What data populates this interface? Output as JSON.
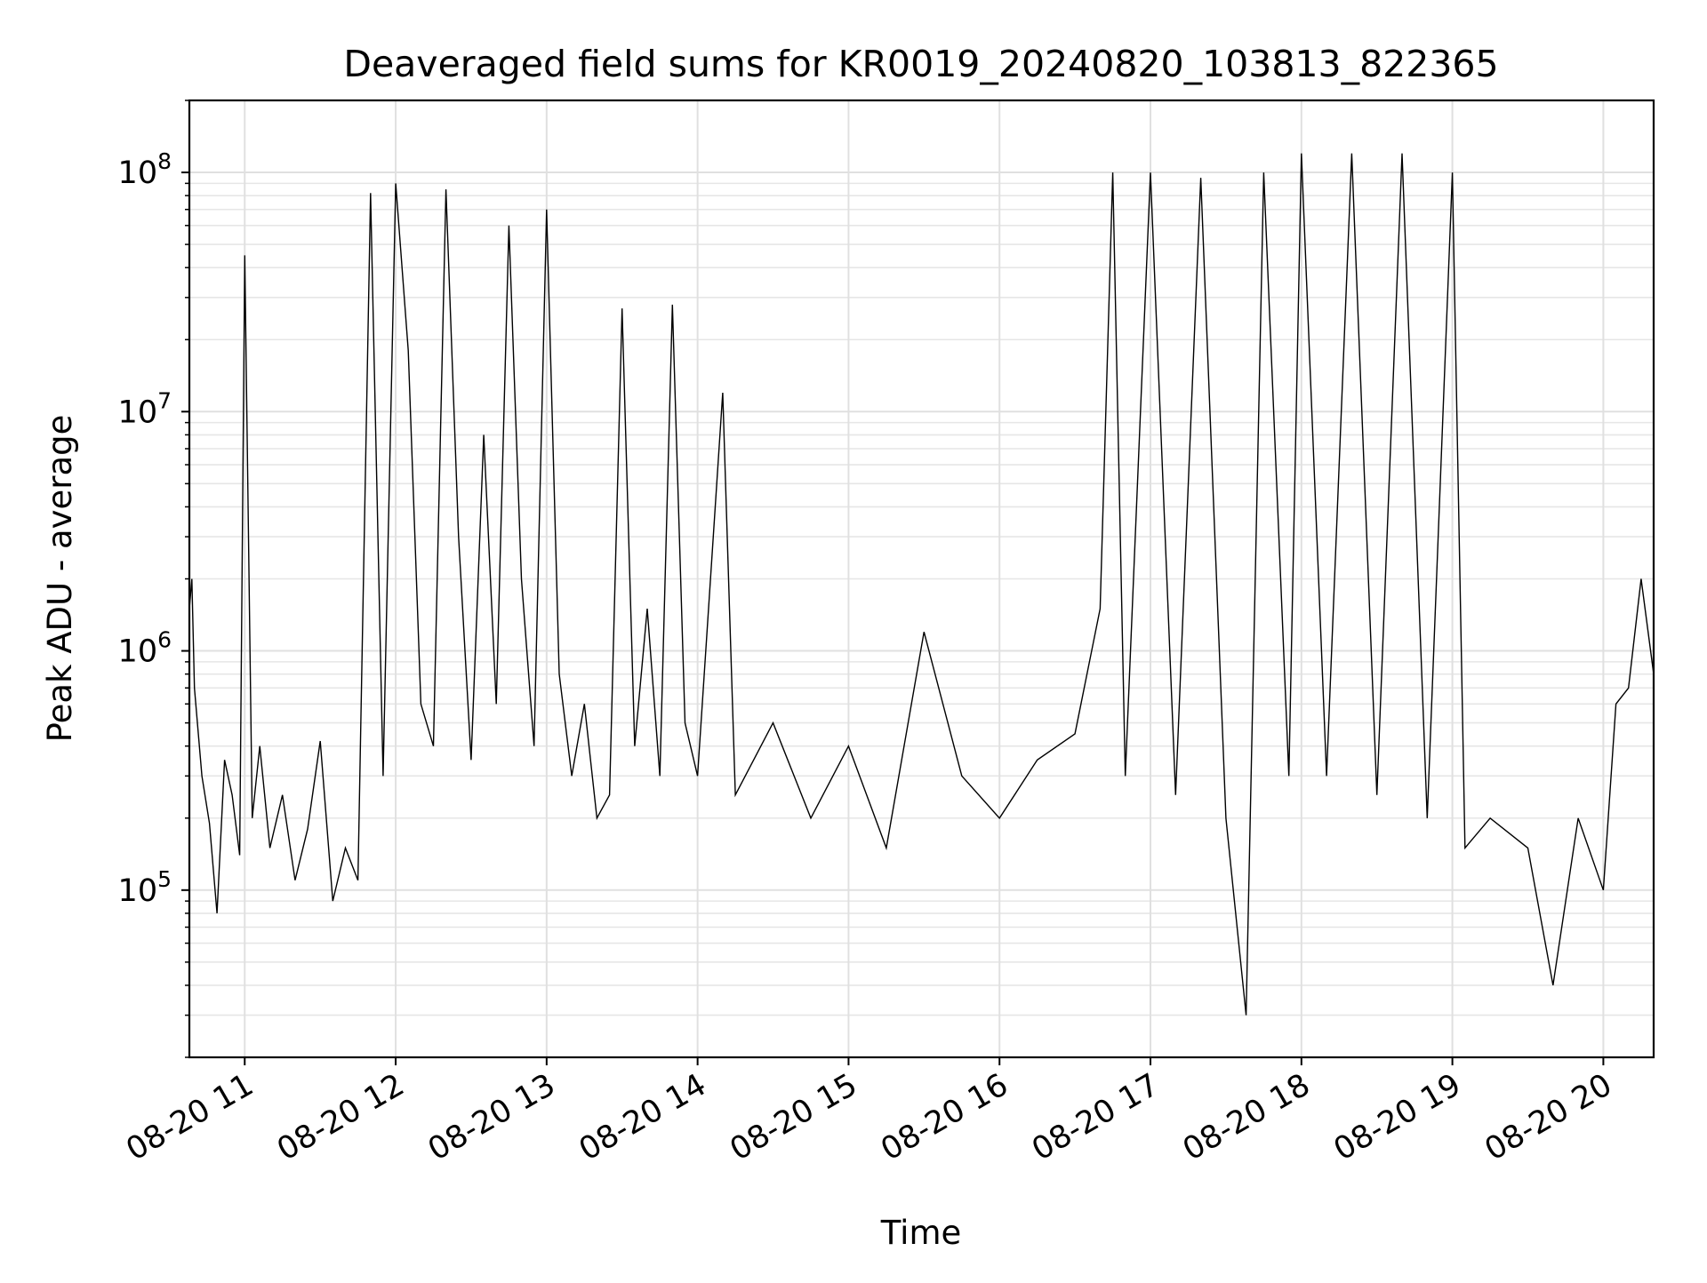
{
  "chart_data": {
    "type": "line",
    "title": "Deaveraged field sums for KR0019_20240820_103813_822365",
    "xlabel": "Time",
    "ylabel": "Peak ADU - average",
    "y_scale": "log",
    "ylim": [
      20000,
      200000000
    ],
    "xlim": [
      "2024-08-20T10:38",
      "2024-08-20T20:20"
    ],
    "grid": true,
    "legend": "none",
    "x_ticks": [
      {
        "t": "2024-08-20T11:00",
        "label": "08-20 11"
      },
      {
        "t": "2024-08-20T12:00",
        "label": "08-20 12"
      },
      {
        "t": "2024-08-20T13:00",
        "label": "08-20 13"
      },
      {
        "t": "2024-08-20T14:00",
        "label": "08-20 14"
      },
      {
        "t": "2024-08-20T15:00",
        "label": "08-20 15"
      },
      {
        "t": "2024-08-20T16:00",
        "label": "08-20 16"
      },
      {
        "t": "2024-08-20T17:00",
        "label": "08-20 17"
      },
      {
        "t": "2024-08-20T18:00",
        "label": "08-20 18"
      },
      {
        "t": "2024-08-20T19:00",
        "label": "08-20 19"
      },
      {
        "t": "2024-08-20T20:00",
        "label": "08-20 20"
      }
    ],
    "y_ticks": [
      {
        "value": 100000,
        "base": "10",
        "exp": "5"
      },
      {
        "value": 1000000,
        "base": "10",
        "exp": "6"
      },
      {
        "value": 10000000,
        "base": "10",
        "exp": "7"
      },
      {
        "value": 100000000,
        "base": "10",
        "exp": "8"
      }
    ],
    "series": [
      {
        "line_color": "#000000",
        "points": [
          [
            "2024-08-20T10:38",
            1500000
          ],
          [
            "2024-08-20T10:39",
            2000000
          ],
          [
            "2024-08-20T10:40",
            700000
          ],
          [
            "2024-08-20T10:43",
            300000
          ],
          [
            "2024-08-20T10:46",
            190000
          ],
          [
            "2024-08-20T10:49",
            80000
          ],
          [
            "2024-08-20T10:52",
            350000
          ],
          [
            "2024-08-20T10:55",
            250000
          ],
          [
            "2024-08-20T10:58",
            140000
          ],
          [
            "2024-08-20T11:00",
            45000000
          ],
          [
            "2024-08-20T11:03",
            200000
          ],
          [
            "2024-08-20T11:06",
            400000
          ],
          [
            "2024-08-20T11:10",
            150000
          ],
          [
            "2024-08-20T11:15",
            250000
          ],
          [
            "2024-08-20T11:20",
            110000
          ],
          [
            "2024-08-20T11:25",
            180000
          ],
          [
            "2024-08-20T11:30",
            420000
          ],
          [
            "2024-08-20T11:35",
            90000
          ],
          [
            "2024-08-20T11:40",
            150000
          ],
          [
            "2024-08-20T11:45",
            110000
          ],
          [
            "2024-08-20T11:50",
            82000000
          ],
          [
            "2024-08-20T11:55",
            300000
          ],
          [
            "2024-08-20T12:00",
            90000000
          ],
          [
            "2024-08-20T12:05",
            18000000
          ],
          [
            "2024-08-20T12:10",
            600000
          ],
          [
            "2024-08-20T12:15",
            400000
          ],
          [
            "2024-08-20T12:20",
            85000000
          ],
          [
            "2024-08-20T12:25",
            3000000
          ],
          [
            "2024-08-20T12:30",
            350000
          ],
          [
            "2024-08-20T12:35",
            8000000
          ],
          [
            "2024-08-20T12:40",
            600000
          ],
          [
            "2024-08-20T12:45",
            60000000
          ],
          [
            "2024-08-20T12:50",
            2000000
          ],
          [
            "2024-08-20T12:55",
            400000
          ],
          [
            "2024-08-20T13:00",
            70000000
          ],
          [
            "2024-08-20T13:05",
            800000
          ],
          [
            "2024-08-20T13:10",
            300000
          ],
          [
            "2024-08-20T13:15",
            600000
          ],
          [
            "2024-08-20T13:20",
            200000
          ],
          [
            "2024-08-20T13:25",
            250000
          ],
          [
            "2024-08-20T13:30",
            27000000
          ],
          [
            "2024-08-20T13:35",
            400000
          ],
          [
            "2024-08-20T13:40",
            1500000
          ],
          [
            "2024-08-20T13:45",
            300000
          ],
          [
            "2024-08-20T13:50",
            28000000
          ],
          [
            "2024-08-20T13:55",
            500000
          ],
          [
            "2024-08-20T14:00",
            300000
          ],
          [
            "2024-08-20T14:10",
            12000000
          ],
          [
            "2024-08-20T14:15",
            250000
          ],
          [
            "2024-08-20T14:30",
            500000
          ],
          [
            "2024-08-20T14:45",
            200000
          ],
          [
            "2024-08-20T15:00",
            400000
          ],
          [
            "2024-08-20T15:15",
            150000
          ],
          [
            "2024-08-20T15:30",
            1200000
          ],
          [
            "2024-08-20T15:45",
            300000
          ],
          [
            "2024-08-20T16:00",
            200000
          ],
          [
            "2024-08-20T16:15",
            350000
          ],
          [
            "2024-08-20T16:30",
            450000
          ],
          [
            "2024-08-20T16:40",
            1500000
          ],
          [
            "2024-08-20T16:45",
            100000000
          ],
          [
            "2024-08-20T16:50",
            300000
          ],
          [
            "2024-08-20T17:00",
            100000000
          ],
          [
            "2024-08-20T17:10",
            250000
          ],
          [
            "2024-08-20T17:20",
            95000000
          ],
          [
            "2024-08-20T17:30",
            200000
          ],
          [
            "2024-08-20T17:38",
            30000
          ],
          [
            "2024-08-20T17:45",
            100000000
          ],
          [
            "2024-08-20T17:55",
            300000
          ],
          [
            "2024-08-20T18:00",
            120000000
          ],
          [
            "2024-08-20T18:10",
            300000
          ],
          [
            "2024-08-20T18:20",
            120000000
          ],
          [
            "2024-08-20T18:30",
            250000
          ],
          [
            "2024-08-20T18:40",
            120000000
          ],
          [
            "2024-08-20T18:50",
            200000
          ],
          [
            "2024-08-20T19:00",
            100000000
          ],
          [
            "2024-08-20T19:05",
            150000
          ],
          [
            "2024-08-20T19:15",
            200000
          ],
          [
            "2024-08-20T19:30",
            150000
          ],
          [
            "2024-08-20T19:40",
            40000
          ],
          [
            "2024-08-20T19:50",
            200000
          ],
          [
            "2024-08-20T20:00",
            100000
          ],
          [
            "2024-08-20T20:05",
            600000
          ],
          [
            "2024-08-20T20:10",
            700000
          ],
          [
            "2024-08-20T20:15",
            2000000
          ],
          [
            "2024-08-20T20:20",
            800000
          ]
        ]
      }
    ]
  }
}
